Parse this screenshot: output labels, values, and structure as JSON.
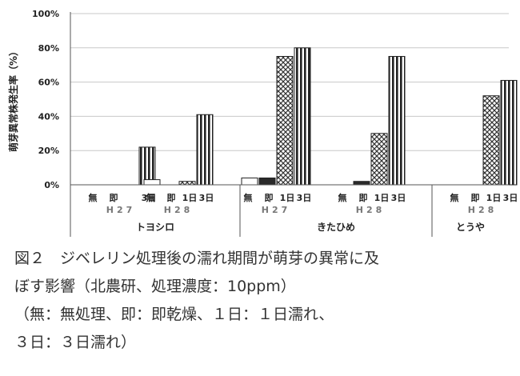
{
  "chart_data": {
    "type": "bar",
    "ylabel": "萌芽異常株発生率（%）",
    "ylim": [
      0,
      100
    ],
    "yticks": [
      "0%",
      "20%",
      "40%",
      "60%",
      "80%",
      "100%"
    ],
    "grid": true,
    "groups": [
      {
        "cultivar": "トヨシロ",
        "years": [
          {
            "year": "H27",
            "bars": [
              {
                "treatment": "無",
                "value": 0,
                "pattern": "white"
              },
              {
                "treatment": "即",
                "value": 0,
                "pattern": "black"
              },
              {
                "treatment": "3日",
                "value": 22,
                "pattern": "vstripe"
              }
            ]
          },
          {
            "year": "H28",
            "bars": [
              {
                "treatment": "無",
                "value": 3,
                "pattern": "white"
              },
              {
                "treatment": "即",
                "value": 0,
                "pattern": "black"
              },
              {
                "treatment": "1日",
                "value": 2,
                "pattern": "cross"
              },
              {
                "treatment": "3日",
                "value": 41,
                "pattern": "vstripe"
              }
            ]
          }
        ]
      },
      {
        "cultivar": "きたひめ",
        "years": [
          {
            "year": "H27",
            "bars": [
              {
                "treatment": "無",
                "value": 4,
                "pattern": "white"
              },
              {
                "treatment": "即",
                "value": 4,
                "pattern": "black"
              },
              {
                "treatment": "1日",
                "value": 75,
                "pattern": "cross"
              },
              {
                "treatment": "3日",
                "value": 80,
                "pattern": "vstripe"
              }
            ]
          },
          {
            "year": "H28",
            "bars": [
              {
                "treatment": "無",
                "value": 0,
                "pattern": "white"
              },
              {
                "treatment": "即",
                "value": 2,
                "pattern": "black"
              },
              {
                "treatment": "1日",
                "value": 30,
                "pattern": "cross"
              },
              {
                "treatment": "3日",
                "value": 75,
                "pattern": "vstripe"
              }
            ]
          }
        ]
      },
      {
        "cultivar": "とうや",
        "years": [
          {
            "year": "H28",
            "bars": [
              {
                "treatment": "無",
                "value": 0,
                "pattern": "white"
              },
              {
                "treatment": "即",
                "value": 0,
                "pattern": "black"
              },
              {
                "treatment": "1日",
                "value": 52,
                "pattern": "cross"
              },
              {
                "treatment": "3日",
                "value": 61,
                "pattern": "vstripe"
              }
            ]
          }
        ]
      }
    ]
  },
  "caption": {
    "line1": "図２　ジベレリン処理後の濡れ期間が萌芽の異常に及",
    "line2": "ぼす影響（北農研、処理濃度：10ppm）",
    "line3": "（無：無処理、即：即乾燥、１日：１日濡れ、",
    "line4": "３日：３日濡れ）"
  },
  "colors": {
    "axis": "#555555",
    "grid": "#c8c8c8",
    "bar_black": "#2a2a2a",
    "label": "#222222",
    "year_label": "#777777"
  }
}
